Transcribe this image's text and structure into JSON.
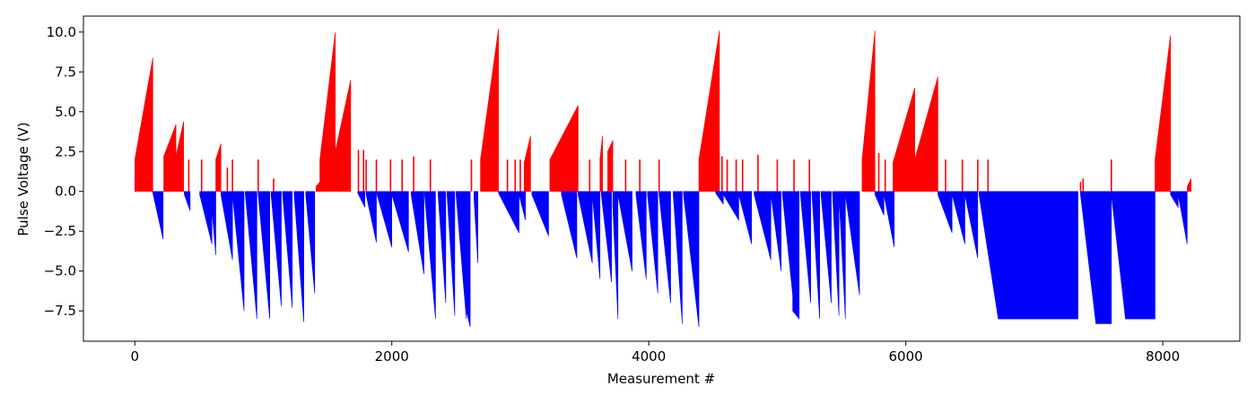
{
  "chart_data": {
    "type": "bar",
    "title": "",
    "xlabel": "Measurement #",
    "ylabel": "Pulse Voltage (V)",
    "xlim": [
      -400,
      8600
    ],
    "ylim": [
      -9.4,
      11.0
    ],
    "xticks": [
      0,
      2000,
      4000,
      6000,
      8000
    ],
    "xtick_labels": [
      "0",
      "2000",
      "4000",
      "6000",
      "8000"
    ],
    "yticks": [
      -7.5,
      -5.0,
      -2.5,
      0.0,
      2.5,
      5.0,
      7.5,
      10.0
    ],
    "ytick_labels": [
      "−7.5",
      "−5.0",
      "−2.5",
      "0.0",
      "2.5",
      "5.0",
      "7.5",
      "10.0"
    ],
    "positive_color": "#ff0000",
    "negative_color": "#0000ff",
    "segments": [
      {
        "x0": 0,
        "x1": 140,
        "y0": 2.0,
        "y1": 8.4
      },
      {
        "x0": 140,
        "x1": 220,
        "y0": -0.1,
        "y1": -3.0
      },
      {
        "x0": 225,
        "x1": 320,
        "y0": 2.2,
        "y1": 4.2
      },
      {
        "x0": 320,
        "x1": 380,
        "y0": 2.2,
        "y1": 4.4
      },
      {
        "x0": 385,
        "x1": 430,
        "y0": -0.2,
        "y1": -1.2
      },
      {
        "x0": 505,
        "x1": 600,
        "y0": -0.2,
        "y1": -3.3
      },
      {
        "x0": 590,
        "x1": 630,
        "y0": -0.2,
        "y1": -4.0
      },
      {
        "x0": 630,
        "x1": 670,
        "y0": 2.0,
        "y1": 3.0
      },
      {
        "x0": 670,
        "x1": 760,
        "y0": -0.2,
        "y1": -4.3
      },
      {
        "x0": 760,
        "x1": 850,
        "y0": -0.2,
        "y1": -7.5
      },
      {
        "x0": 860,
        "x1": 950,
        "y0": -0.2,
        "y1": -8.0
      },
      {
        "x0": 960,
        "x1": 1050,
        "y0": -0.2,
        "y1": -8.0
      },
      {
        "x0": 1060,
        "x1": 1140,
        "y0": -0.2,
        "y1": -7.2
      },
      {
        "x0": 1150,
        "x1": 1225,
        "y0": -0.2,
        "y1": -7.3
      },
      {
        "x0": 1240,
        "x1": 1315,
        "y0": -0.2,
        "y1": -8.2
      },
      {
        "x0": 1330,
        "x1": 1400,
        "y0": -0.2,
        "y1": -6.4
      },
      {
        "x0": 1410,
        "x1": 1440,
        "y0": 0.3,
        "y1": 0.6
      },
      {
        "x0": 1440,
        "x1": 1560,
        "y0": 2.0,
        "y1": 10.0
      },
      {
        "x0": 1560,
        "x1": 1680,
        "y0": 2.5,
        "y1": 7.0
      },
      {
        "x0": 1735,
        "x1": 1790,
        "y0": -0.1,
        "y1": -1.0
      },
      {
        "x0": 1800,
        "x1": 1880,
        "y0": -0.2,
        "y1": -3.2
      },
      {
        "x0": 1885,
        "x1": 2000,
        "y0": -0.2,
        "y1": -3.5
      },
      {
        "x0": 2000,
        "x1": 2130,
        "y0": -0.2,
        "y1": -3.8
      },
      {
        "x0": 2150,
        "x1": 2250,
        "y0": -0.2,
        "y1": -5.2
      },
      {
        "x0": 2255,
        "x1": 2340,
        "y0": -0.2,
        "y1": -8.0
      },
      {
        "x0": 2360,
        "x1": 2420,
        "y0": -0.2,
        "y1": -7.0
      },
      {
        "x0": 2430,
        "x1": 2490,
        "y0": -0.2,
        "y1": -7.8
      },
      {
        "x0": 2500,
        "x1": 2580,
        "y0": -0.2,
        "y1": -8.0
      },
      {
        "x0": 2580,
        "x1": 2610,
        "y0": -7.5,
        "y1": -8.5
      },
      {
        "x0": 2640,
        "x1": 2670,
        "y0": -0.5,
        "y1": -4.5
      },
      {
        "x0": 2690,
        "x1": 2830,
        "y0": 2.0,
        "y1": 10.2
      },
      {
        "x0": 2830,
        "x1": 2990,
        "y0": -0.1,
        "y1": -2.6
      },
      {
        "x0": 2870,
        "x1": 2920,
        "y0": -0.2,
        "y1": -1.0
      },
      {
        "x0": 2990,
        "x1": 3040,
        "y0": -0.2,
        "y1": -1.8
      },
      {
        "x0": 3030,
        "x1": 3080,
        "y0": 1.8,
        "y1": 3.5
      },
      {
        "x0": 3090,
        "x1": 3220,
        "y0": -0.2,
        "y1": -2.8
      },
      {
        "x0": 3230,
        "x1": 3450,
        "y0": 2.0,
        "y1": 5.4
      },
      {
        "x0": 3320,
        "x1": 3440,
        "y0": -0.2,
        "y1": -4.2
      },
      {
        "x0": 3450,
        "x1": 3560,
        "y0": -0.2,
        "y1": -4.5
      },
      {
        "x0": 3560,
        "x1": 3620,
        "y0": -0.2,
        "y1": -5.5
      },
      {
        "x0": 3620,
        "x1": 3640,
        "y0": 2.0,
        "y1": 3.5
      },
      {
        "x0": 3630,
        "x1": 3710,
        "y0": -0.2,
        "y1": -5.7
      },
      {
        "x0": 3680,
        "x1": 3720,
        "y0": 2.5,
        "y1": 3.2
      },
      {
        "x0": 3720,
        "x1": 3760,
        "y0": -1.0,
        "y1": -8.0
      },
      {
        "x0": 3760,
        "x1": 3870,
        "y0": -0.2,
        "y1": -5.0
      },
      {
        "x0": 3900,
        "x1": 3980,
        "y0": -0.2,
        "y1": -5.5
      },
      {
        "x0": 3990,
        "x1": 4070,
        "y0": -0.2,
        "y1": -6.4
      },
      {
        "x0": 4080,
        "x1": 4170,
        "y0": -0.2,
        "y1": -7.0
      },
      {
        "x0": 4190,
        "x1": 4260,
        "y0": -0.2,
        "y1": -8.3
      },
      {
        "x0": 4270,
        "x1": 4390,
        "y0": -0.2,
        "y1": -8.5
      },
      {
        "x0": 4390,
        "x1": 4550,
        "y0": 2.0,
        "y1": 10.1
      },
      {
        "x0": 4520,
        "x1": 4580,
        "y0": -0.1,
        "y1": -0.8
      },
      {
        "x0": 4580,
        "x1": 4700,
        "y0": -0.2,
        "y1": -1.8
      },
      {
        "x0": 4700,
        "x1": 4800,
        "y0": -0.2,
        "y1": -3.3
      },
      {
        "x0": 4820,
        "x1": 4950,
        "y0": -0.2,
        "y1": -4.3
      },
      {
        "x0": 4950,
        "x1": 5030,
        "y0": -0.2,
        "y1": -5.0
      },
      {
        "x0": 5040,
        "x1": 5120,
        "y0": -0.2,
        "y1": -6.5
      },
      {
        "x0": 5120,
        "x1": 5170,
        "y0": -7.5,
        "y1": -8.0
      },
      {
        "x0": 5180,
        "x1": 5260,
        "y0": -0.2,
        "y1": -7.0
      },
      {
        "x0": 5270,
        "x1": 5330,
        "y0": -0.2,
        "y1": -8.0
      },
      {
        "x0": 5340,
        "x1": 5420,
        "y0": -0.2,
        "y1": -7.0
      },
      {
        "x0": 5430,
        "x1": 5480,
        "y0": -0.2,
        "y1": -7.8
      },
      {
        "x0": 5480,
        "x1": 5530,
        "y0": -0.2,
        "y1": -8.0
      },
      {
        "x0": 5530,
        "x1": 5640,
        "y0": -0.2,
        "y1": -6.5
      },
      {
        "x0": 5660,
        "x1": 5760,
        "y0": 2.0,
        "y1": 10.1
      },
      {
        "x0": 5760,
        "x1": 5830,
        "y0": -0.2,
        "y1": -1.5
      },
      {
        "x0": 5830,
        "x1": 5910,
        "y0": -0.2,
        "y1": -3.5
      },
      {
        "x0": 5900,
        "x1": 6070,
        "y0": 1.8,
        "y1": 6.5
      },
      {
        "x0": 6070,
        "x1": 6250,
        "y0": 2.0,
        "y1": 7.2
      },
      {
        "x0": 6250,
        "x1": 6360,
        "y0": -0.2,
        "y1": -2.6
      },
      {
        "x0": 6360,
        "x1": 6460,
        "y0": -0.2,
        "y1": -3.3
      },
      {
        "x0": 6460,
        "x1": 6560,
        "y0": -0.2,
        "y1": -4.2
      },
      {
        "x0": 6570,
        "x1": 6720,
        "y0": -0.2,
        "y1": -8.0
      },
      {
        "x0": 6720,
        "x1": 7340,
        "y0": -8.0,
        "y1": -8.0
      },
      {
        "x0": 7360,
        "x1": 7480,
        "y0": -0.2,
        "y1": -8.3
      },
      {
        "x0": 7480,
        "x1": 7600,
        "y0": -8.3,
        "y1": -8.3
      },
      {
        "x0": 7600,
        "x1": 7710,
        "y0": -0.2,
        "y1": -8.0
      },
      {
        "x0": 7710,
        "x1": 7940,
        "y0": -8.0,
        "y1": -8.0
      },
      {
        "x0": 7940,
        "x1": 8060,
        "y0": 2.0,
        "y1": 9.8
      },
      {
        "x0": 8060,
        "x1": 8120,
        "y0": -0.2,
        "y1": -1.0
      },
      {
        "x0": 8120,
        "x1": 8190,
        "y0": -0.2,
        "y1": -3.3
      },
      {
        "x0": 8190,
        "x1": 8220,
        "y0": 0.3,
        "y1": 0.8
      }
    ],
    "spikes": [
      {
        "x": 420,
        "y": 2.0
      },
      {
        "x": 520,
        "y": 2.0
      },
      {
        "x": 720,
        "y": 1.5
      },
      {
        "x": 760,
        "y": 2.0
      },
      {
        "x": 960,
        "y": 2.0
      },
      {
        "x": 1080,
        "y": 0.8
      },
      {
        "x": 1740,
        "y": 2.6
      },
      {
        "x": 1780,
        "y": 2.6
      },
      {
        "x": 1800,
        "y": 2.0
      },
      {
        "x": 1880,
        "y": 2.0
      },
      {
        "x": 1990,
        "y": 2.0
      },
      {
        "x": 2080,
        "y": 2.0
      },
      {
        "x": 2170,
        "y": 2.2
      },
      {
        "x": 2300,
        "y": 2.0
      },
      {
        "x": 2620,
        "y": 2.0
      },
      {
        "x": 2900,
        "y": 2.0
      },
      {
        "x": 2960,
        "y": 2.0
      },
      {
        "x": 3000,
        "y": 2.0
      },
      {
        "x": 3540,
        "y": 2.0
      },
      {
        "x": 3820,
        "y": 2.0
      },
      {
        "x": 3930,
        "y": 2.0
      },
      {
        "x": 4080,
        "y": 2.0
      },
      {
        "x": 4570,
        "y": 2.2
      },
      {
        "x": 4610,
        "y": 2.0
      },
      {
        "x": 4680,
        "y": 2.0
      },
      {
        "x": 4730,
        "y": 2.0
      },
      {
        "x": 4850,
        "y": 2.3
      },
      {
        "x": 5000,
        "y": 2.0
      },
      {
        "x": 5130,
        "y": 2.0
      },
      {
        "x": 5250,
        "y": 2.0
      },
      {
        "x": 5790,
        "y": 2.4
      },
      {
        "x": 5840,
        "y": 2.0
      },
      {
        "x": 6310,
        "y": 2.0
      },
      {
        "x": 6440,
        "y": 2.0
      },
      {
        "x": 6560,
        "y": 2.0
      },
      {
        "x": 6640,
        "y": 2.0
      },
      {
        "x": 7360,
        "y": 0.6
      },
      {
        "x": 7380,
        "y": 0.8
      },
      {
        "x": 7600,
        "y": 2.0
      }
    ]
  }
}
